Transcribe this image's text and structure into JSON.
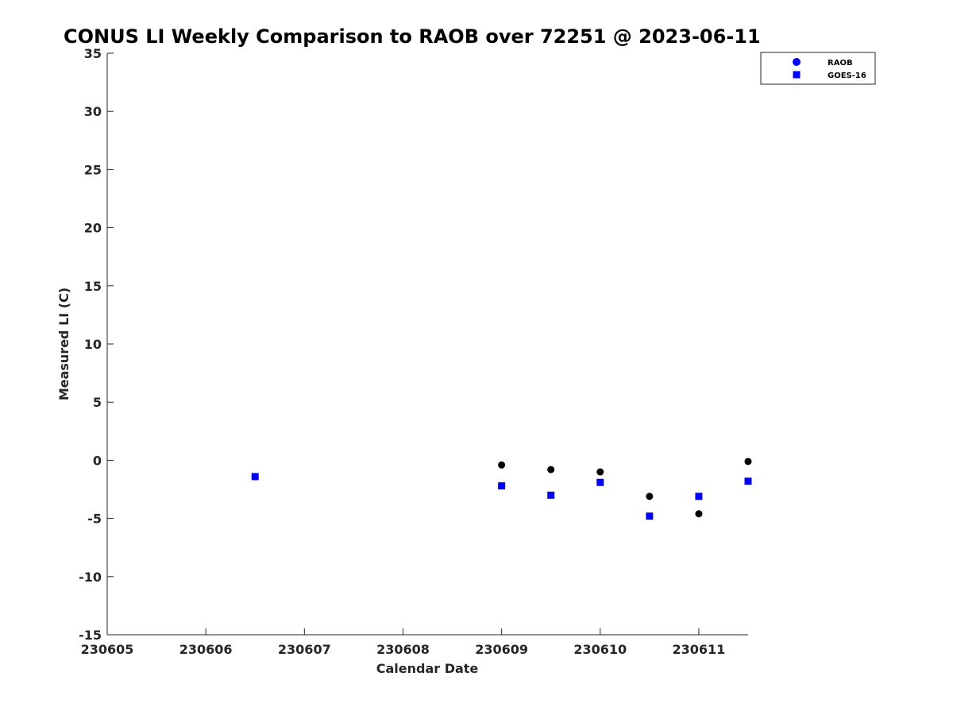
{
  "chart_data": {
    "type": "scatter",
    "title": "CONUS LI Weekly Comparison to RAOB over 72251 @ 2023-06-11",
    "xlabel": "Calendar Date",
    "ylabel": "Measured LI (C)",
    "xlim": [
      0,
      6.5
    ],
    "ylim": [
      -15,
      35
    ],
    "x_ticks": [
      {
        "value": 0,
        "label": "230605"
      },
      {
        "value": 1,
        "label": "230606"
      },
      {
        "value": 2,
        "label": "230607"
      },
      {
        "value": 3,
        "label": "230608"
      },
      {
        "value": 4,
        "label": "230609"
      },
      {
        "value": 5,
        "label": "230610"
      },
      {
        "value": 6,
        "label": "230611"
      }
    ],
    "y_ticks": [
      {
        "value": 35,
        "label": "35"
      },
      {
        "value": 30,
        "label": "30"
      },
      {
        "value": 25,
        "label": "25"
      },
      {
        "value": 20,
        "label": "20"
      },
      {
        "value": 15,
        "label": "15"
      },
      {
        "value": 10,
        "label": "10"
      },
      {
        "value": 5,
        "label": "5"
      },
      {
        "value": 0,
        "label": "0"
      },
      {
        "value": -5,
        "label": "-5"
      },
      {
        "value": -10,
        "label": "-10"
      },
      {
        "value": -15,
        "label": "-15"
      }
    ],
    "legend_position": "top-right",
    "series": [
      {
        "name": "RAOB",
        "marker": "circle",
        "legend_color": "#0000ff",
        "point_color": "#000000",
        "x": [
          1.5,
          4.0,
          4.5,
          5.0,
          5.5,
          6.0,
          6.5
        ],
        "y": [
          -1.4,
          -0.4,
          -0.8,
          -1.0,
          -3.1,
          -4.6,
          -0.1
        ]
      },
      {
        "name": "GOES-16",
        "marker": "square",
        "legend_color": "#0000ff",
        "point_color": "#0000ff",
        "x": [
          1.5,
          4.0,
          4.5,
          5.0,
          5.5,
          6.0,
          6.5
        ],
        "y": [
          -1.4,
          -2.2,
          -3.0,
          -1.9,
          -4.8,
          -3.1,
          -1.8
        ]
      }
    ]
  }
}
